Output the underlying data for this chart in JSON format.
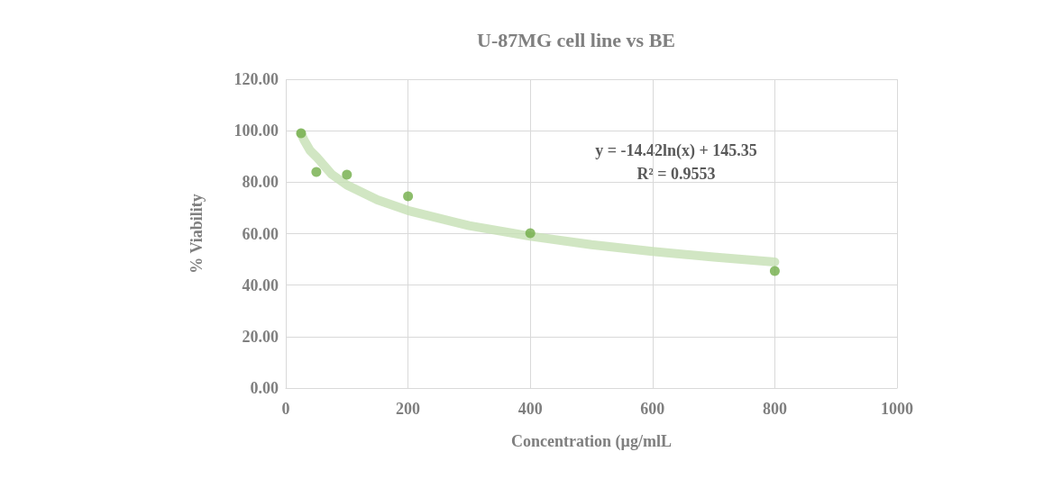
{
  "chart_data": {
    "type": "scatter",
    "title": "U-87MG cell line vs BE",
    "xlabel": "Concentration (µg/mlL",
    "ylabel": "% Viability",
    "series": [
      {
        "color": "#70ad47",
        "marker": "circle",
        "x": [
          25,
          50,
          100,
          200,
          400,
          800
        ],
        "values": [
          99.0,
          84.0,
          82.9,
          74.5,
          60.2,
          45.5
        ]
      },
      {
        "type": "line",
        "color": "#c5e0b4",
        "marker": "none",
        "line_style": "solid",
        "x": [
          25,
          30,
          40,
          50,
          75,
          100,
          150,
          200,
          300,
          400,
          500,
          600,
          700,
          800
        ],
        "values": [
          98.9,
          96.3,
          92.2,
          89.9,
          83.1,
          78.9,
          73.1,
          69.0,
          63.1,
          59.0,
          55.7,
          53.1,
          50.9,
          49.0
        ]
      }
    ],
    "xlim": [
      0,
      1000
    ],
    "xticks": [
      0,
      200,
      400,
      600,
      800,
      1000
    ],
    "ylim": [
      0,
      120
    ],
    "yticks": [
      {
        "value": 0,
        "label": "0.00"
      },
      {
        "value": 20,
        "label": "20.00"
      },
      {
        "value": 40,
        "label": "40.00"
      },
      {
        "value": 60,
        "label": "60.00"
      },
      {
        "value": 80,
        "label": "80.00"
      },
      {
        "value": 100,
        "label": "100.00"
      },
      {
        "value": 120,
        "label": "120.00"
      }
    ],
    "grid": true,
    "annotations": [
      "y = -14.42ln(x) + 145.35",
      "R² = 0.9553"
    ]
  }
}
